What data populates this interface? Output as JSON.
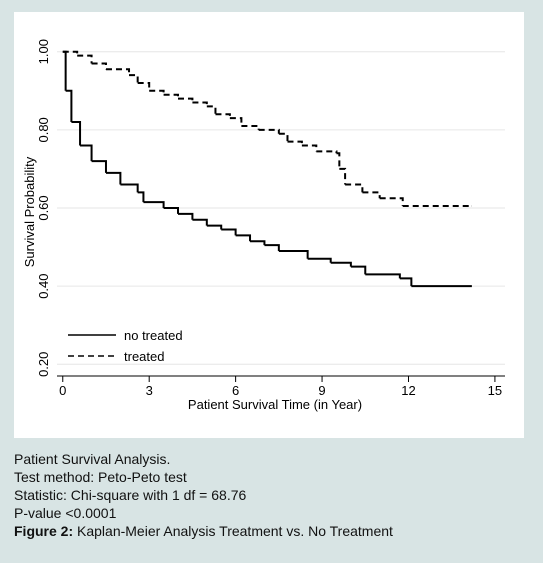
{
  "chart_data": {
    "type": "line",
    "step": true,
    "xlabel": "Patient Survival Time (in Year)",
    "ylabel": "Survival Probability",
    "xlim": [
      -0.2,
      15.35
    ],
    "ylim": [
      0.17,
      1.03
    ],
    "xticks": [
      0,
      3,
      6,
      9,
      12,
      15
    ],
    "yticks": [
      {
        "value": 0.2,
        "label": "0.20"
      },
      {
        "value": 0.4,
        "label": "0.40"
      },
      {
        "value": 0.6,
        "label": "0.60"
      },
      {
        "value": 0.8,
        "label": "0.80"
      },
      {
        "value": 1,
        "label": "1.00"
      }
    ],
    "grid": true,
    "legend": "lower left",
    "series": [
      {
        "name": "no treated",
        "color": "#000000",
        "dash": "solid",
        "x": [
          0,
          0.1,
          0.3,
          0.6,
          1.0,
          1.5,
          2.0,
          2.6,
          2.8,
          3.5,
          4.0,
          4.5,
          5.0,
          5.5,
          6.0,
          6.5,
          7.0,
          7.5,
          8.5,
          9.3,
          10.0,
          10.5,
          11.7,
          12.1,
          14.2
        ],
        "values": [
          1.0,
          0.9,
          0.82,
          0.76,
          0.72,
          0.69,
          0.66,
          0.64,
          0.615,
          0.6,
          0.585,
          0.57,
          0.555,
          0.545,
          0.53,
          0.515,
          0.505,
          0.49,
          0.47,
          0.46,
          0.45,
          0.43,
          0.42,
          0.4,
          0.4
        ]
      },
      {
        "name": "treated",
        "color": "#000000",
        "dash": "dashed",
        "x": [
          0,
          0.5,
          1.0,
          1.5,
          2.3,
          2.6,
          3.0,
          3.5,
          4.0,
          4.5,
          5.0,
          5.3,
          5.8,
          6.2,
          6.8,
          7.5,
          7.8,
          8.3,
          8.8,
          9.5,
          9.6,
          9.8,
          10.4,
          11.0,
          11.8,
          14.2
        ],
        "values": [
          1.0,
          0.99,
          0.97,
          0.955,
          0.94,
          0.92,
          0.9,
          0.89,
          0.88,
          0.87,
          0.86,
          0.84,
          0.83,
          0.81,
          0.8,
          0.79,
          0.77,
          0.76,
          0.745,
          0.74,
          0.7,
          0.66,
          0.64,
          0.625,
          0.605,
          0.605
        ]
      }
    ]
  },
  "caption": {
    "lines": [
      "Patient Survival Analysis.",
      "Test method: Peto-Peto test",
      "Statistic: Chi-square with 1 df = 68.76",
      "P-value <0.0001"
    ],
    "figure_label": "Figure 2:",
    "figure_text": "Kaplan-Meier Analysis Treatment vs. No Treatment"
  }
}
